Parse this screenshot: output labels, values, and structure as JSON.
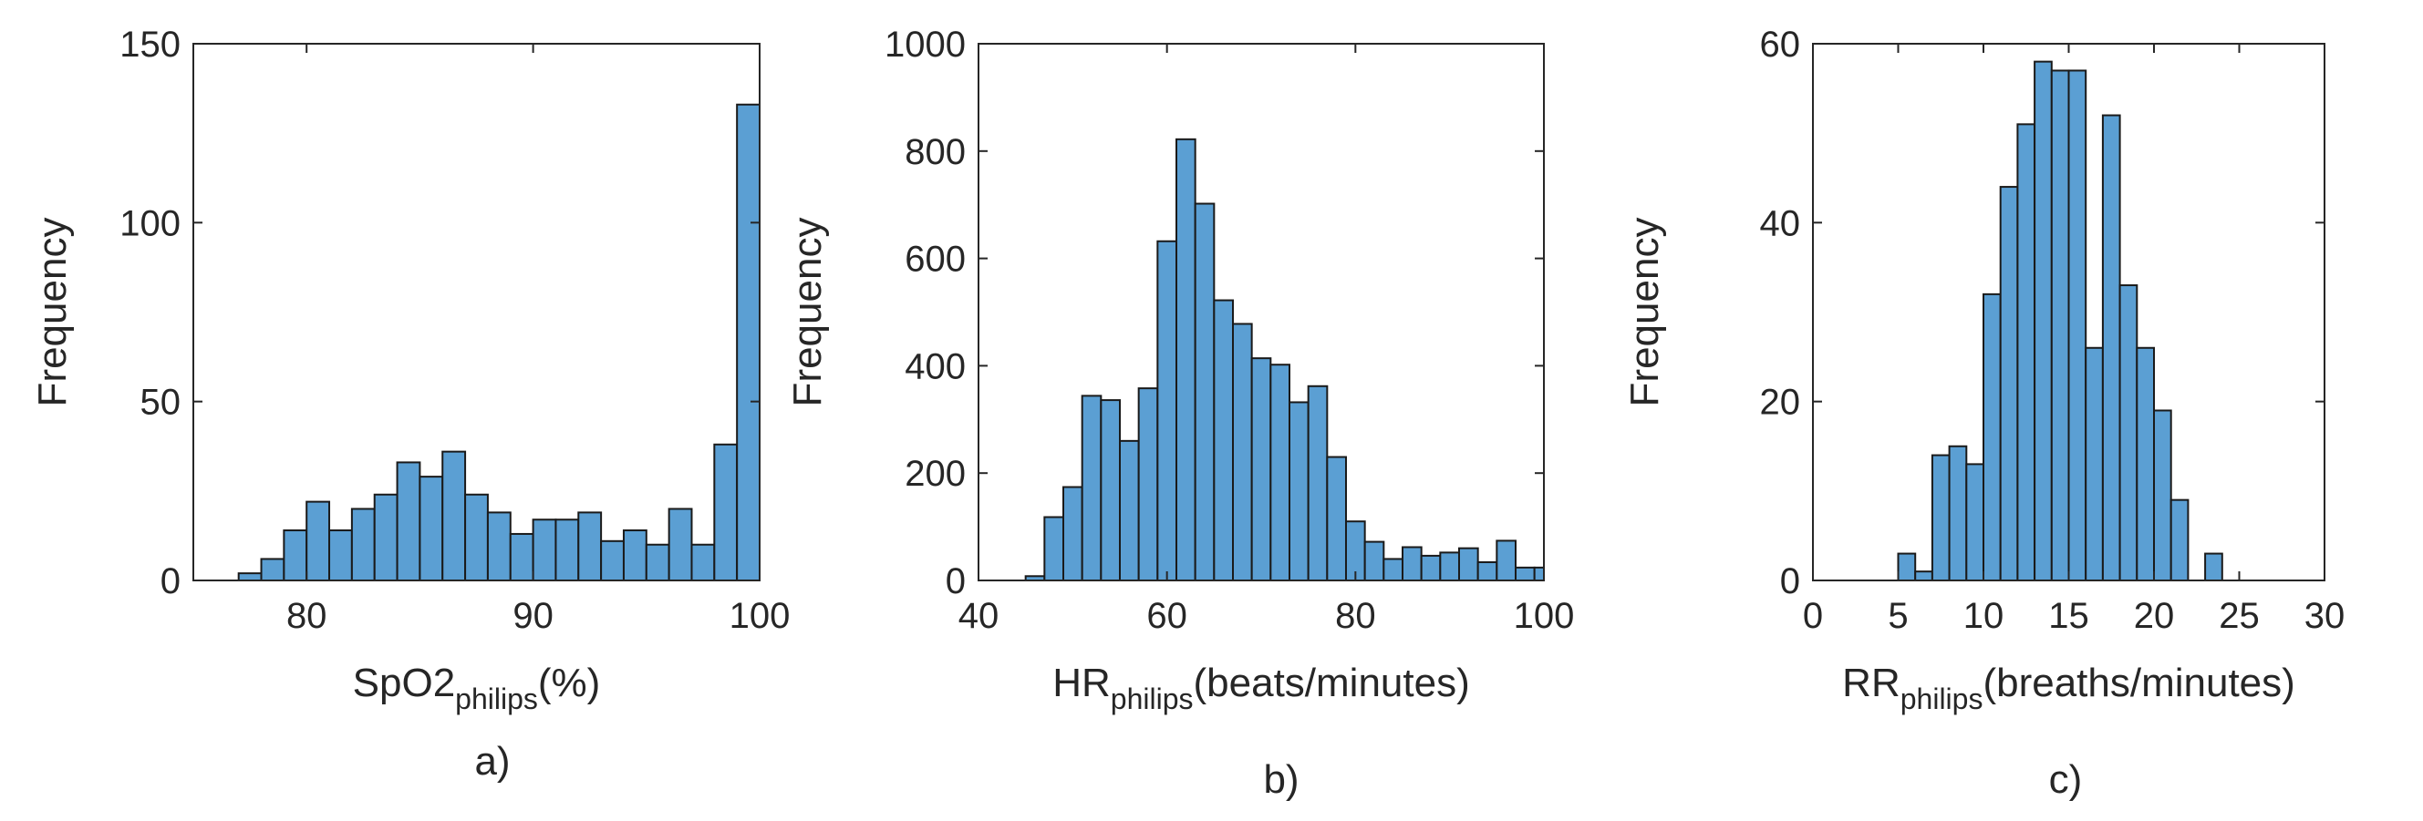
{
  "chart_data": [
    {
      "type": "bar",
      "panel_label": "a)",
      "xlabel": {
        "main": "SpO2",
        "sub": "philips",
        "suffix": "(%)"
      },
      "ylabel": "Frequency",
      "xlim": [
        75,
        100
      ],
      "ylim": [
        0,
        150
      ],
      "xticks": [
        80,
        90,
        100
      ],
      "yticks": [
        0,
        50,
        100,
        150
      ],
      "bin_edges": [
        77,
        78,
        79,
        80,
        81,
        82,
        83,
        84,
        85,
        86,
        87,
        88,
        89,
        90,
        91,
        92,
        93,
        94,
        95,
        96,
        97,
        98,
        99,
        100
      ],
      "values": [
        2,
        6,
        14,
        22,
        14,
        20,
        24,
        33,
        29,
        36,
        24,
        19,
        13,
        17,
        17,
        19,
        11,
        14,
        10,
        20,
        10,
        38,
        133
      ],
      "grid": false,
      "bar_color": "#5b9fd3"
    },
    {
      "type": "bar",
      "panel_label": "b)",
      "xlabel": {
        "main": "HR",
        "sub": "philips",
        "suffix": "(beats/minutes)"
      },
      "ylabel": "Frequency",
      "xlim": [
        40,
        100
      ],
      "ylim": [
        0,
        1000
      ],
      "xticks": [
        40,
        60,
        80,
        100
      ],
      "yticks": [
        0,
        200,
        400,
        600,
        800,
        1000
      ],
      "bin_edges": [
        45,
        47,
        49,
        51,
        53,
        55,
        57,
        59,
        61,
        63,
        65,
        67,
        69,
        71,
        73,
        75,
        77,
        79,
        81,
        83,
        85,
        87,
        89,
        91,
        93,
        95,
        97,
        99,
        100
      ],
      "values": [
        8,
        118,
        174,
        344,
        336,
        260,
        358,
        632,
        822,
        702,
        522,
        478,
        414,
        402,
        332,
        362,
        230,
        110,
        72,
        40,
        62,
        46,
        52,
        60,
        34,
        74,
        24,
        24
      ],
      "grid": false,
      "bar_color": "#5b9fd3"
    },
    {
      "type": "bar",
      "panel_label": "c)",
      "xlabel": {
        "main": "RR",
        "sub": "philips",
        "suffix": "(breaths/minutes)"
      },
      "ylabel": "Frequency",
      "xlim": [
        0,
        30
      ],
      "ylim": [
        0,
        60
      ],
      "xticks": [
        0,
        5,
        10,
        15,
        20,
        25,
        30
      ],
      "yticks": [
        0,
        20,
        40,
        60
      ],
      "bin_edges": [
        5,
        6,
        7,
        8,
        9,
        10,
        11,
        12,
        13,
        14,
        15,
        16,
        17,
        18,
        19,
        20,
        21,
        22,
        23,
        24
      ],
      "values": [
        3,
        1,
        14,
        15,
        13,
        32,
        44,
        51,
        58,
        57,
        57,
        26,
        52,
        33,
        26,
        19,
        9,
        0,
        3
      ],
      "grid": false,
      "bar_color": "#5b9fd3"
    }
  ]
}
